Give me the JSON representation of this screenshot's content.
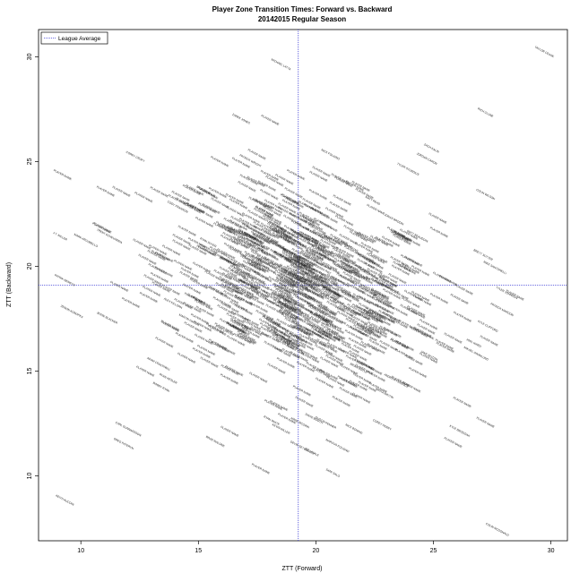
{
  "chart_data": {
    "type": "scatter",
    "title": "Player Zone Transition Times:  Forward vs. Backward",
    "subtitle": "20142015 Regular Season",
    "xlabel": "ZTT  (Forward)",
    "ylabel": "ZTT  (Backward)",
    "xlim": [
      8.2,
      30.7
    ],
    "ylim": [
      6.9,
      31.3
    ],
    "xticks": [
      "10",
      "15",
      "20",
      "25",
      "30"
    ],
    "yticks": [
      "10",
      "15",
      "20",
      "25",
      "30"
    ],
    "grid": false,
    "legend": {
      "position": "top-left",
      "entries": [
        "League Average"
      ]
    },
    "reference_lines": {
      "x": 19.25,
      "y": 19.1,
      "color": "#3b3bd6",
      "style": "dotted"
    },
    "label_color": "#222222",
    "points": [
      {
        "x": 29.7,
        "y": 30.2,
        "label": "TAYLOR CEASE"
      },
      {
        "x": 18.5,
        "y": 29.6,
        "label": "MICHAEL LATTA"
      },
      {
        "x": 27.2,
        "y": 27.3,
        "label": "RICH CLUNE"
      },
      {
        "x": 16.8,
        "y": 27.0,
        "label": "ZAREK JONES"
      },
      {
        "x": 24.9,
        "y": 25.6,
        "label": "ZACH KALIN"
      },
      {
        "x": 24.7,
        "y": 25.1,
        "label": "JORDAN CARON"
      },
      {
        "x": 12.3,
        "y": 25.2,
        "label": "COREY CROFT"
      },
      {
        "x": 23.9,
        "y": 24.6,
        "label": "TYLER STURDIUS"
      },
      {
        "x": 17.2,
        "y": 25.0,
        "label": "PATRICK WRIGHT"
      },
      {
        "x": 20.6,
        "y": 25.3,
        "label": "NICK FOLIGNO"
      },
      {
        "x": 11.2,
        "y": 21.4,
        "label": "TRENT ECHEVARRIA"
      },
      {
        "x": 9.1,
        "y": 21.4,
        "label": "J.T. MILLER"
      },
      {
        "x": 10.2,
        "y": 21.2,
        "label": "MARK ARCOBELLO"
      },
      {
        "x": 9.3,
        "y": 19.3,
        "label": "PATRIK NEMETH"
      },
      {
        "x": 9.6,
        "y": 17.8,
        "label": "ZENON KONOPKA"
      },
      {
        "x": 11.1,
        "y": 17.5,
        "label": "JESSE BLACKER"
      },
      {
        "x": 27.2,
        "y": 23.4,
        "label": "COLIN WILSON"
      },
      {
        "x": 27.1,
        "y": 20.5,
        "label": "BRETT SUTTER"
      },
      {
        "x": 27.6,
        "y": 19.9,
        "label": "MIKE SANTORELLI"
      },
      {
        "x": 28.1,
        "y": 18.7,
        "label": "TYLER JOHNSON"
      },
      {
        "x": 27.9,
        "y": 17.9,
        "label": "PATRICK MAROON"
      },
      {
        "x": 27.3,
        "y": 17.1,
        "label": "KYLE CLIFFORD"
      },
      {
        "x": 26.8,
        "y": 15.8,
        "label": "MIKAEL GRANLUND"
      },
      {
        "x": 26.7,
        "y": 16.3,
        "label": "JOEL WARD"
      },
      {
        "x": 24.8,
        "y": 15.7,
        "label": "JAKE MUZZIN"
      },
      {
        "x": 23.4,
        "y": 14.5,
        "label": "ANDREW FERENCE"
      },
      {
        "x": 21.8,
        "y": 15.1,
        "label": "BRIAN BOYLE"
      },
      {
        "x": 22.9,
        "y": 13.9,
        "label": "NIKITA NIKITIN"
      },
      {
        "x": 22.8,
        "y": 12.4,
        "label": "COREY PERRY"
      },
      {
        "x": 20.4,
        "y": 12.5,
        "label": "DUSTIN PENNER"
      },
      {
        "x": 21.6,
        "y": 12.2,
        "label": "NICK BONINO"
      },
      {
        "x": 19.9,
        "y": 12.7,
        "label": "DAVID BOOTH"
      },
      {
        "x": 19.3,
        "y": 12.5,
        "label": "JAMIE MCGINN"
      },
      {
        "x": 20.9,
        "y": 11.4,
        "label": "MARCUS FOLIGNO"
      },
      {
        "x": 20.7,
        "y": 10.1,
        "label": "SAMI SALO"
      },
      {
        "x": 19.8,
        "y": 11.1,
        "label": "JOE VITALE"
      },
      {
        "x": 19.4,
        "y": 11.3,
        "label": "DEVIN SETOGUCHI"
      },
      {
        "x": 18.5,
        "y": 12.2,
        "label": "KEVIN MILLER"
      },
      {
        "x": 18.1,
        "y": 12.6,
        "label": "RYAN WHITE"
      },
      {
        "x": 15.7,
        "y": 11.6,
        "label": "BRAD MALONE"
      },
      {
        "x": 12.0,
        "y": 12.2,
        "label": "CARL GUNNARSSON"
      },
      {
        "x": 11.8,
        "y": 11.5,
        "label": "GREG PATERYN"
      },
      {
        "x": 9.3,
        "y": 8.8,
        "label": "KEITH AUCOIN"
      },
      {
        "x": 27.7,
        "y": 7.4,
        "label": "COLIN MCDONALD"
      },
      {
        "x": 26.1,
        "y": 12.1,
        "label": "KYLE BRODZIAK"
      },
      {
        "x": 16.1,
        "y": 16.9,
        "label": "RYAN CARTER"
      },
      {
        "x": 13.9,
        "y": 18.2,
        "label": "ALEX KILLORN"
      },
      {
        "x": 14.6,
        "y": 17.4,
        "label": "MARTIN HANZAL"
      },
      {
        "x": 13.3,
        "y": 15.3,
        "label": "ADAM CRACKNELL"
      },
      {
        "x": 13.7,
        "y": 14.6,
        "label": "RYAN KESLER"
      },
      {
        "x": 13.4,
        "y": 14.2,
        "label": "BOBBY RYAN"
      },
      {
        "x": 14.1,
        "y": 22.8,
        "label": "CODY FRANSON"
      },
      {
        "x": 15.2,
        "y": 23.6,
        "label": "ERIC FEHR"
      },
      {
        "x": 22.4,
        "y": 23.1,
        "label": "MATT READ"
      },
      {
        "x": 23.3,
        "y": 22.2,
        "label": "JONAS BRODIN"
      },
      {
        "x": 24.3,
        "y": 21.4,
        "label": "MATT BEAUDOIN"
      },
      {
        "x": 16.2,
        "y": 20.2,
        "label": "JEFF PETRY"
      },
      {
        "x": 17.1,
        "y": 19.1,
        "label": "MARK LETESTU"
      },
      {
        "x": 18.6,
        "y": 18.4,
        "label": "CAL CLUTTERBUCK"
      },
      {
        "x": 20.3,
        "y": 19.8,
        "label": "DEREK ROY"
      },
      {
        "x": 21.4,
        "y": 20.9,
        "label": "TOMAS TATAR"
      },
      {
        "x": 22.2,
        "y": 18.3,
        "label": "JAKUB VORACEK"
      },
      {
        "x": 19.9,
        "y": 17.2,
        "label": "ANDREW SHAW"
      },
      {
        "x": 17.8,
        "y": 21.6,
        "label": "DEREK DORSETT"
      },
      {
        "x": 15.4,
        "y": 21.1,
        "label": "RYAN SUTER"
      },
      {
        "x": 21.1,
        "y": 16.4,
        "label": "JOHN MOORE"
      }
    ],
    "density_cluster": {
      "center": [
        19.3,
        19.1
      ],
      "spread": [
        2.9,
        2.7
      ],
      "count": 760,
      "label": "PLAYER NAME"
    }
  }
}
